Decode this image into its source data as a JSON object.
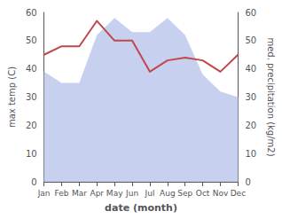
{
  "chart_data": {
    "type": "line",
    "xlabel": "date (month)",
    "ylabel": "max temp (C)",
    "y2label": "med. precipitation (kg/m2)",
    "categories": [
      "Jan",
      "Feb",
      "Mar",
      "Apr",
      "May",
      "Jun",
      "Jul",
      "Aug",
      "Sep",
      "Oct",
      "Nov",
      "Dec"
    ],
    "series": [
      {
        "type": "area",
        "color": "#c8d0f0",
        "values": [
          39,
          35,
          35,
          52,
          58,
          53,
          53,
          58,
          52,
          38,
          32,
          30
        ]
      },
      {
        "type": "line",
        "color": "#c0474a",
        "values": [
          45,
          48,
          48,
          57,
          50,
          50,
          39,
          43,
          44,
          43,
          39,
          45
        ]
      }
    ],
    "ylim": [
      0,
      60
    ],
    "yticks": [
      0,
      10,
      20,
      30,
      40,
      50,
      60
    ],
    "y2lim": [
      0,
      60
    ],
    "y2ticks": [
      0,
      10,
      20,
      30,
      40,
      50,
      60
    ],
    "grid": false
  }
}
